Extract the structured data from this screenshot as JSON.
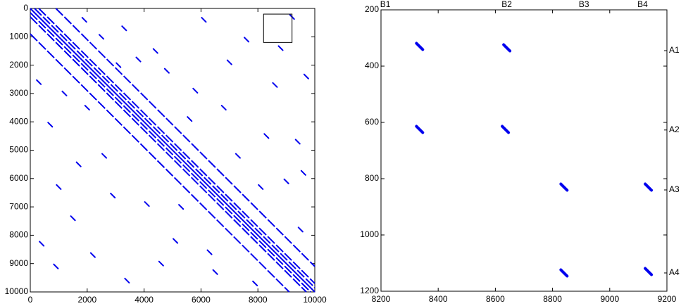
{
  "chart_data": [
    {
      "type": "spy",
      "color": "#0000ee",
      "xlim": [
        0,
        10000
      ],
      "ylim": [
        0,
        10000
      ],
      "y_inverted": true,
      "xticks": [
        0,
        2000,
        4000,
        6000,
        8000,
        10000
      ],
      "yticks": [
        0,
        1000,
        2000,
        3000,
        4000,
        5000,
        6000,
        7000,
        8000,
        9000,
        10000
      ],
      "diagonals": [
        -900,
        -300,
        -150,
        0,
        150,
        300,
        900
      ],
      "points": {
        "x": [
          1200,
          1900,
          2600,
          3300,
          4400,
          5100,
          5800,
          6500,
          7600,
          8300,
          9000,
          9700,
          300,
          1000,
          2200,
          3400,
          4800,
          6100,
          7300,
          8600,
          9500,
          700,
          1500,
          2900,
          3800,
          5300,
          6800,
          7900,
          9200,
          400,
          1700,
          2500,
          4100,
          5600,
          6300,
          8800,
          9400,
          900,
          2000,
          3100,
          4600,
          7000,
          8100,
          9600
        ],
        "y": [
          3000,
          400,
          5200,
          700,
          1500,
          8200,
          2900,
          9300,
          1100,
          4500,
          6100,
          2400,
          2600,
          6300,
          8700,
          9600,
          2200,
          400,
          5200,
          2700,
          7800,
          4100,
          7400,
          6600,
          1800,
          7000,
          3500,
          9700,
          300,
          8300,
          5500,
          1000,
          6900,
          3900,
          8600,
          1400,
          4700,
          9100,
          3500,
          2000,
          9000,
          1900,
          6300,
          5800
        ]
      },
      "zoom_box": {
        "x": [
          8200,
          9200
        ],
        "y": [
          200,
          1200
        ]
      }
    },
    {
      "type": "spy",
      "color": "#0000ee",
      "xlim": [
        8200,
        9200
      ],
      "ylim": [
        200,
        1200
      ],
      "y_inverted": true,
      "xticks": [
        8200,
        8400,
        8600,
        8800,
        9000,
        9200
      ],
      "yticks": [
        200,
        400,
        600,
        800,
        1000,
        1200
      ],
      "points": {
        "x": [
          8335,
          8640,
          8335,
          8635,
          8840,
          9135,
          8840,
          9135
        ],
        "y": [
          330,
          335,
          625,
          625,
          830,
          830,
          1135,
          1130
        ]
      },
      "top_ticks": {
        "labels": [
          "B1",
          "B2",
          "B3",
          "B4"
        ],
        "values": [
          8215,
          8640,
          8910,
          9115
        ]
      },
      "right_ticks": {
        "labels": [
          "A1",
          "A2",
          "A3",
          "A4"
        ],
        "values": [
          345,
          627,
          840,
          1135
        ]
      }
    }
  ]
}
